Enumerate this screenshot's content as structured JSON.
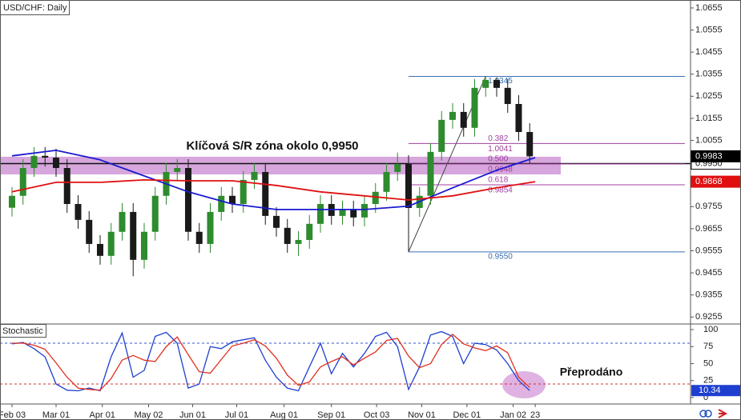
{
  "chart_data": [
    {
      "type": "candlestick",
      "title": "USD/CHF: Daily",
      "annotation": "Klíčová S/R zóna okolo 0,9950",
      "xlim": [
        -1.09,
        61.6
      ],
      "xticks": [
        {
          "value": 0,
          "label": "Feb 03"
        },
        {
          "value": 4,
          "label": "Mar 01"
        },
        {
          "value": 8.2,
          "label": "Apr 01"
        },
        {
          "value": 12.4,
          "label": "May 02"
        },
        {
          "value": 16.4,
          "label": "Jun 01"
        },
        {
          "value": 20.4,
          "label": "Jul 01"
        },
        {
          "value": 24.7,
          "label": "Aug 01"
        },
        {
          "value": 29,
          "label": "Sep 01"
        },
        {
          "value": 33.1,
          "label": "Oct 03"
        },
        {
          "value": 37.2,
          "label": "Nov 01"
        },
        {
          "value": 41.3,
          "label": "Dec 01"
        },
        {
          "value": 45.5,
          "label": "Jan 02"
        },
        {
          "value": 47.5,
          "label": "23"
        }
      ],
      "ylim": [
        0.9227,
        1.0691
      ],
      "yticks": [
        1.0655,
        1.0555,
        1.0455,
        1.0355,
        1.0255,
        1.0155,
        1.0055,
        0.9955,
        0.9855,
        0.9755,
        0.9655,
        0.9555,
        0.9455,
        0.9355,
        0.9255
      ],
      "up_color": "#2e8b2e",
      "down_color": "#1a1a1a",
      "open": [
        0.975,
        0.9804,
        0.993,
        0.9985,
        0.9977,
        0.993,
        0.9767,
        0.9695,
        0.9586,
        0.9532,
        0.9641,
        0.9731,
        0.9514,
        0.9641,
        0.9804,
        0.9912,
        0.993,
        0.9641,
        0.9586,
        0.9731,
        0.9804,
        0.9767,
        0.9876,
        0.9912,
        0.9713,
        0.9659,
        0.9586,
        0.9604,
        0.9677,
        0.9767,
        0.9713,
        0.9742,
        0.9706,
        0.9767,
        0.9822,
        0.9912,
        0.9948,
        0.9749,
        0.9804,
        1.0003,
        1.0148,
        1.0184,
        1.0112,
        1.0293,
        1.0329,
        1.0293,
        1.022,
        1.0093
      ],
      "high": [
        0.9844,
        0.997,
        1.0025,
        1.0025,
        1.0017,
        0.997,
        0.9807,
        0.9735,
        0.9626,
        0.9681,
        0.9771,
        0.9771,
        0.9681,
        0.9844,
        0.9952,
        0.997,
        0.997,
        0.9681,
        0.9771,
        0.9844,
        0.9844,
        0.9916,
        0.9952,
        0.9952,
        0.9753,
        0.9699,
        0.9644,
        0.9717,
        0.9807,
        0.9807,
        0.9782,
        0.9782,
        0.9807,
        0.9862,
        0.9952,
        1.0,
        0.9988,
        0.9844,
        1.0043,
        1.0188,
        1.0224,
        1.0224,
        1.0333,
        1.0345,
        1.034,
        1.0333,
        1.026,
        1.0133
      ],
      "low": [
        0.971,
        0.9764,
        0.989,
        0.9937,
        0.989,
        0.9727,
        0.9655,
        0.9546,
        0.9492,
        0.9492,
        0.9601,
        0.944,
        0.9474,
        0.9601,
        0.9764,
        0.9872,
        0.9601,
        0.9546,
        0.9546,
        0.9691,
        0.9727,
        0.9727,
        0.9836,
        0.9673,
        0.9619,
        0.9546,
        0.9532,
        0.9564,
        0.9637,
        0.9673,
        0.9673,
        0.9666,
        0.9666,
        0.9727,
        0.9782,
        0.9872,
        0.955,
        0.9709,
        0.9764,
        0.9963,
        1.0108,
        1.0072,
        1.0072,
        1.0253,
        1.0253,
        1.018,
        1.0053,
        0.995
      ],
      "close": [
        0.9804,
        0.993,
        0.9985,
        0.9977,
        0.993,
        0.9767,
        0.9695,
        0.9586,
        0.9532,
        0.9641,
        0.9731,
        0.9514,
        0.9641,
        0.9804,
        0.9912,
        0.993,
        0.9641,
        0.9586,
        0.9731,
        0.9804,
        0.9767,
        0.9876,
        0.9912,
        0.9713,
        0.9659,
        0.9586,
        0.9604,
        0.9677,
        0.9767,
        0.9713,
        0.9742,
        0.9706,
        0.9767,
        0.9822,
        0.9912,
        0.9948,
        0.9749,
        0.9804,
        1.0003,
        1.0148,
        1.0184,
        1.0112,
        1.0293,
        1.0329,
        1.0293,
        1.022,
        1.0093,
        0.9983
      ],
      "last_color": "#000000",
      "series": [
        {
          "color": "#1a1ad0",
          "x": [
            0,
            4,
            8,
            12,
            16,
            20,
            24,
            28,
            32,
            36,
            40,
            44,
            47.5
          ],
          "values": [
            0.9985,
            1.001,
            0.9967,
            0.9894,
            0.9822,
            0.9767,
            0.9742,
            0.9742,
            0.9742,
            0.9757,
            0.984,
            0.992,
            0.9977
          ]
        },
        {
          "color": "#e01010",
          "x": [
            0,
            4,
            8,
            12,
            16,
            20,
            24,
            28,
            32,
            36,
            40,
            44,
            47.5
          ],
          "values": [
            0.9822,
            0.9865,
            0.9865,
            0.9876,
            0.9872,
            0.9872,
            0.9851,
            0.9822,
            0.9804,
            0.9785,
            0.9804,
            0.984,
            0.9868
          ]
        }
      ],
      "zone": [
        0.9901,
        0.9981
      ],
      "zone_color": "#cf96d6",
      "sr_level": {
        "value": 0.995,
        "label": "0.9950"
      },
      "fib": {
        "line_color": "#3a6fb0",
        "level_color": "#a040a0",
        "high": 1.0345,
        "low": {
          "value": 0.955,
          "label": "0.9550"
        },
        "levels": [
          {
            "ratio": 0.382,
            "price": 1.0041
          },
          {
            "ratio": {
              "value": 0.5,
              "label": "0.500"
            },
            "price": 0.9948
          },
          {
            "ratio": 0.618,
            "price": 0.9854
          }
        ]
      }
    },
    {
      "type": "line",
      "title": "Stochastic",
      "annotation": "Přeprodáno",
      "xlim": [
        -1.09,
        61.6
      ],
      "ylim": [
        -9.4,
        108.2
      ],
      "yticks": [
        0,
        25,
        50,
        75,
        100
      ],
      "levels": [
        {
          "value": 80,
          "color": "#3355cc"
        },
        {
          "value": 20,
          "color": "#cc3333"
        }
      ],
      "series": [
        {
          "color": "#1f3fd0",
          "values": [
            79,
            81,
            72,
            60,
            20,
            11,
            10,
            14,
            10,
            60,
            95,
            30,
            40,
            90,
            96,
            80,
            14,
            20,
            75,
            72,
            82,
            85,
            88,
            55,
            30,
            14,
            10,
            45,
            80,
            35,
            65,
            45,
            65,
            90,
            96,
            75,
            12,
            45,
            92,
            97,
            90,
            50,
            80,
            78,
            70,
            50,
            25,
            10.34
          ]
        },
        {
          "color": "#e03020",
          "values": [
            80,
            80,
            77,
            71,
            51,
            30,
            14,
            12,
            11,
            28,
            55,
            62,
            55,
            53,
            75,
            89,
            63,
            38,
            36,
            56,
            76,
            80,
            85,
            76,
            58,
            33,
            18,
            23,
            45,
            53,
            60,
            48,
            58,
            67,
            84,
            87,
            61,
            44,
            50,
            78,
            93,
            79,
            73,
            69,
            76,
            66,
            30,
            15
          ]
        }
      ]
    }
  ]
}
